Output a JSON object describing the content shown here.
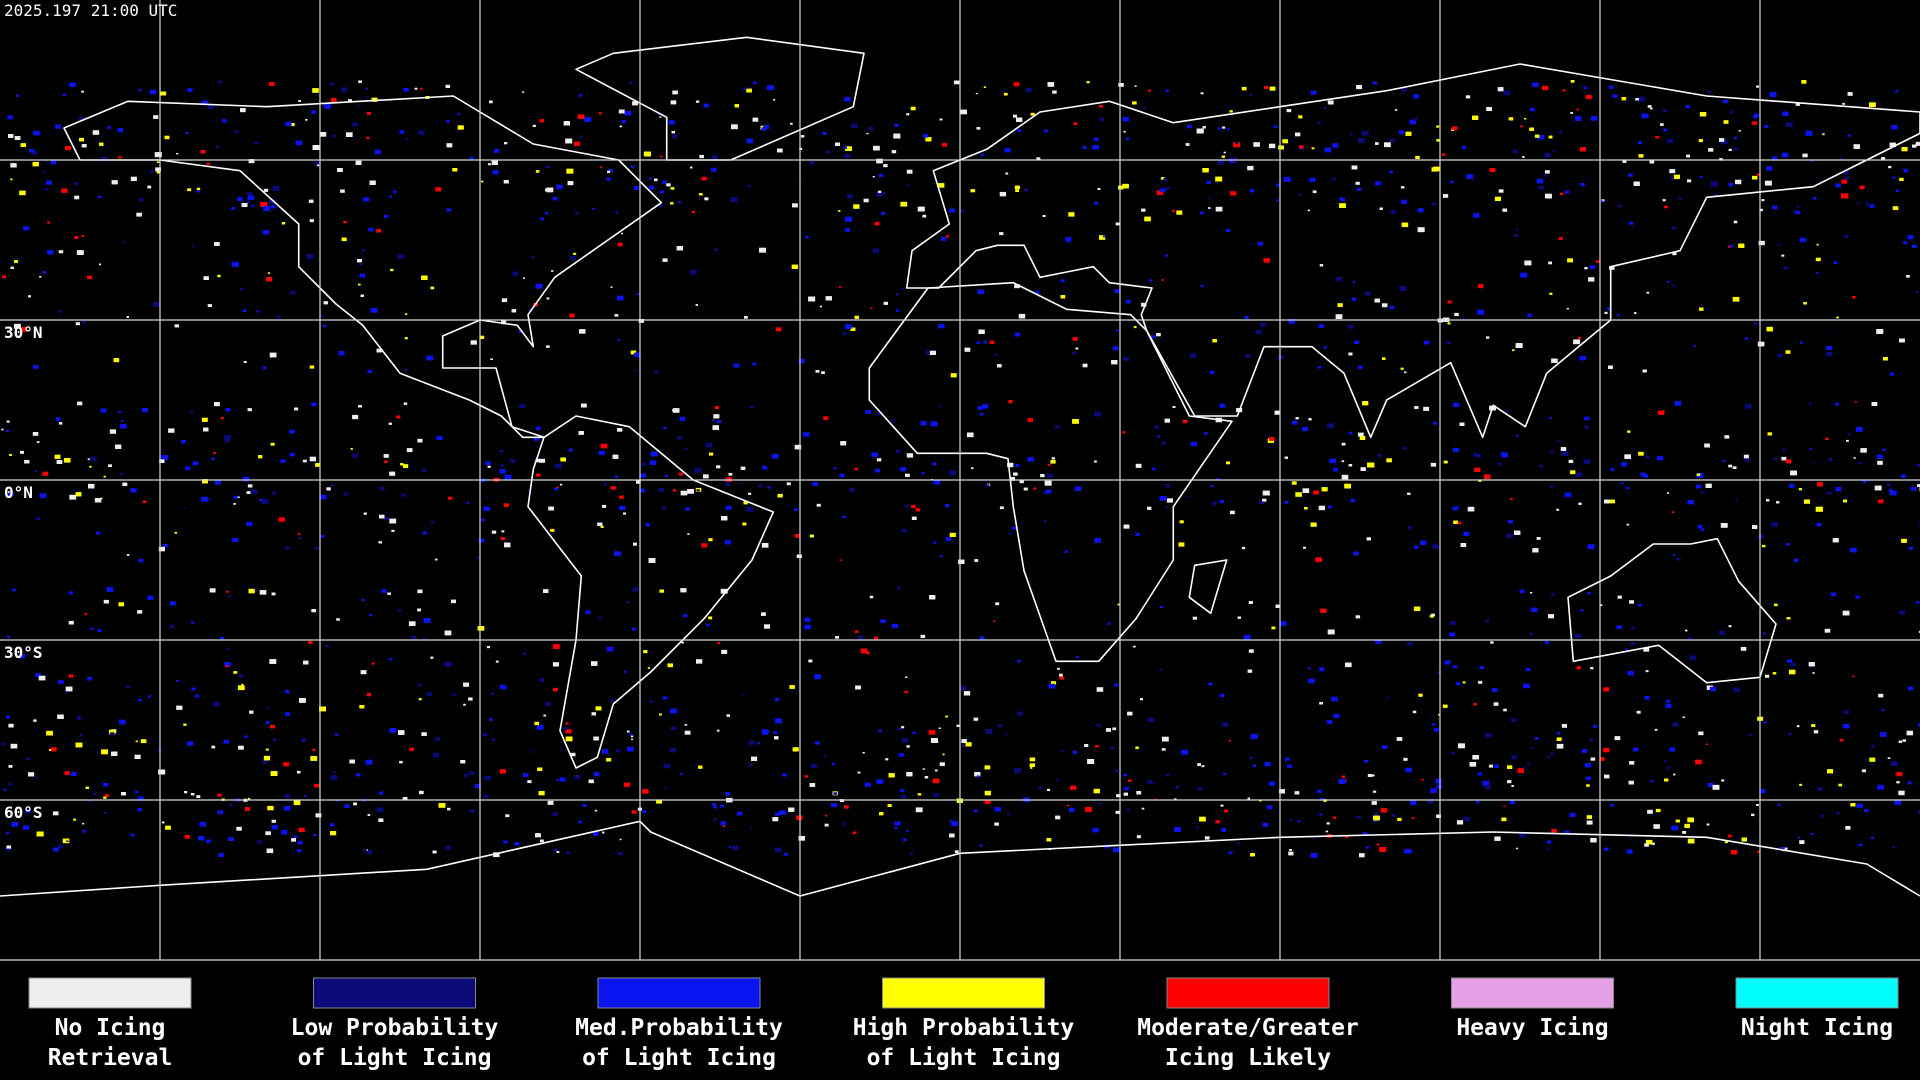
{
  "timestamp": "2025.197 21:00 UTC",
  "latitude_labels": [
    "30°N",
    "0°N",
    "30°S",
    "60°S"
  ],
  "legend": [
    {
      "color": "#eeeeee",
      "lines": [
        "No Icing",
        "Retrieval"
      ]
    },
    {
      "color": "#0a0a78",
      "lines": [
        "Low Probability",
        "of Light Icing"
      ]
    },
    {
      "color": "#0a14f0",
      "lines": [
        "Med.Probability",
        "of Light Icing"
      ]
    },
    {
      "color": "#ffff00",
      "lines": [
        "High Probability",
        "of Light Icing"
      ]
    },
    {
      "color": "#ff0000",
      "lines": [
        "Moderate/Greater",
        "Icing Likely"
      ]
    },
    {
      "color": "#e6a0e6",
      "lines": [
        "Heavy Icing"
      ]
    },
    {
      "color": "#00ffff",
      "lines": [
        "Night Icing"
      ]
    }
  ]
}
